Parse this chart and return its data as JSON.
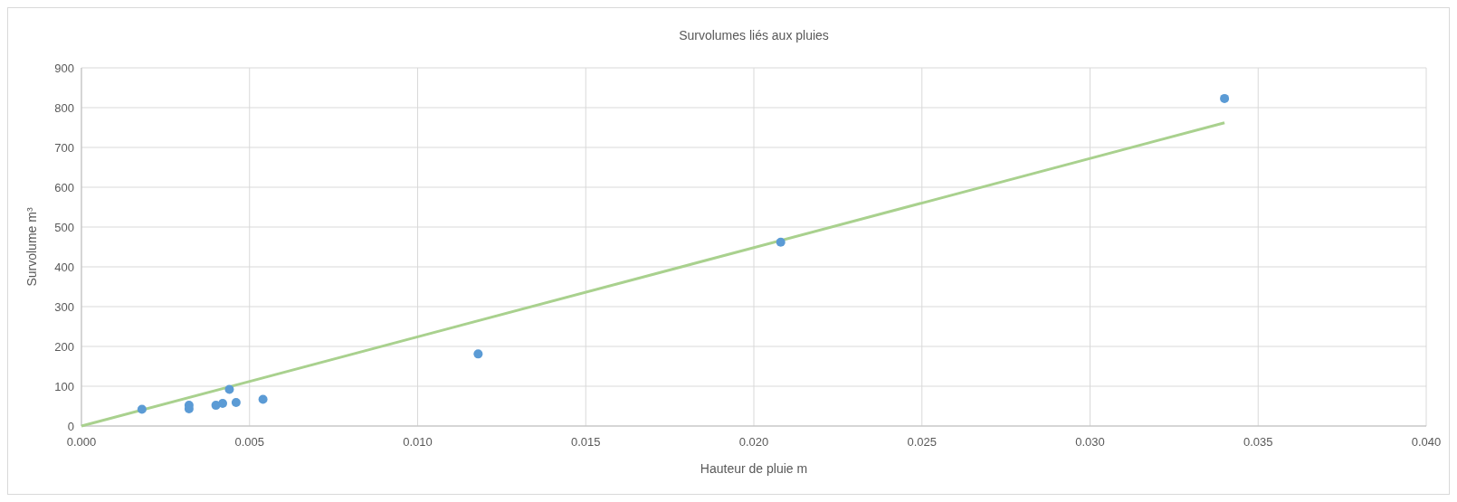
{
  "chart_data": {
    "type": "scatter",
    "title": "Survolumes liés aux pluies",
    "xlabel": "Hauteur de pluie m",
    "ylabel": "Survolume m³",
    "xlim": [
      0,
      0.04
    ],
    "xticks": [
      {
        "value": 0,
        "label": "0.000"
      },
      {
        "value": 0.005,
        "label": "0.005"
      },
      {
        "value": 0.01,
        "label": "0.010"
      },
      {
        "value": 0.015,
        "label": "0.015"
      },
      {
        "value": 0.02,
        "label": "0.020"
      },
      {
        "value": 0.025,
        "label": "0.025"
      },
      {
        "value": 0.03,
        "label": "0.030"
      },
      {
        "value": 0.035,
        "label": "0.035"
      },
      {
        "value": 0.04,
        "label": "0.040"
      }
    ],
    "ylim": [
      0,
      900
    ],
    "yticks": [
      0,
      100,
      200,
      300,
      400,
      500,
      600,
      700,
      800,
      900
    ],
    "grid": true,
    "series": [
      {
        "color": "#5b9bd5",
        "marker": "circle",
        "x": [
          0.0018,
          0.0032,
          0.0032,
          0.004,
          0.0042,
          0.0044,
          0.0046,
          0.0054,
          0.0118,
          0.0208,
          0.034
        ],
        "values": [
          42,
          52,
          43,
          52,
          57,
          92,
          59,
          67,
          181,
          462,
          823
        ]
      },
      {
        "type": "line",
        "color": "#a9d18e",
        "x": [
          0,
          0.034
        ],
        "values": [
          0,
          762
        ]
      }
    ]
  }
}
